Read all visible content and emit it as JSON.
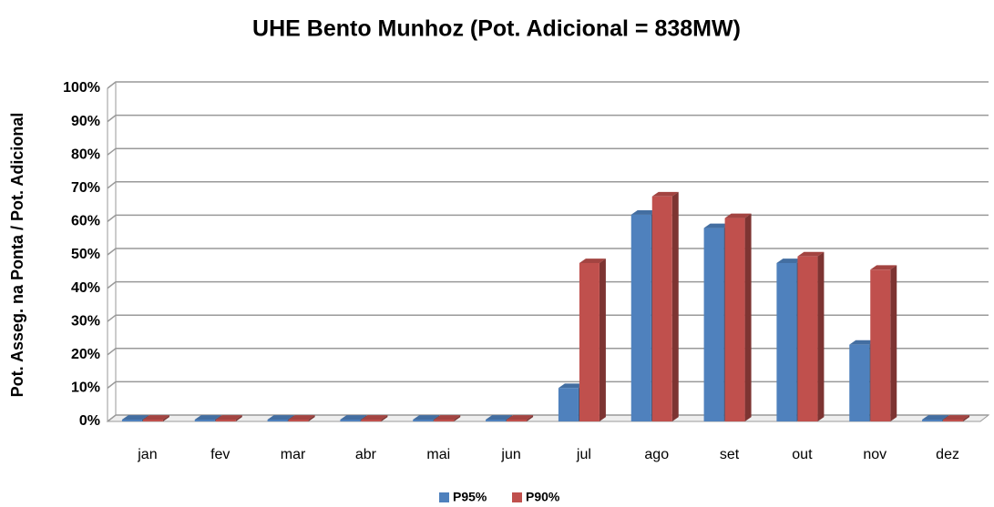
{
  "chart_data": {
    "type": "bar3d",
    "title": "UHE Bento Munhoz  (Pot. Adicional = 838MW)",
    "ylabel": "Pot. Asseg. na Ponta / Pot. Adicional",
    "categories": [
      "jan",
      "fev",
      "mar",
      "abr",
      "mai",
      "jun",
      "jul",
      "ago",
      "set",
      "out",
      "nov",
      "dez"
    ],
    "series": [
      {
        "name": "P95%",
        "color": "#4f81bd",
        "values": [
          0,
          0,
          0,
          0,
          0,
          0,
          9.5,
          61.5,
          57.5,
          47,
          22.5,
          0
        ]
      },
      {
        "name": "P90%",
        "color": "#c0504d",
        "values": [
          0,
          0,
          0,
          0,
          0,
          0,
          47,
          67,
          60.5,
          49,
          45,
          0
        ]
      }
    ],
    "ylim": [
      0,
      100
    ],
    "yticks": [
      {
        "value": 0,
        "label": "0%"
      },
      {
        "value": 10,
        "label": "10%"
      },
      {
        "value": 20,
        "label": "20%"
      },
      {
        "value": 30,
        "label": "30%"
      },
      {
        "value": 40,
        "label": "40%"
      },
      {
        "value": 50,
        "label": "50%"
      },
      {
        "value": 60,
        "label": "60%"
      },
      {
        "value": 70,
        "label": "70%"
      },
      {
        "value": 80,
        "label": "80%"
      },
      {
        "value": 90,
        "label": "90%"
      },
      {
        "value": 100,
        "label": "100%"
      }
    ],
    "grid": true,
    "legend": "bottom"
  }
}
